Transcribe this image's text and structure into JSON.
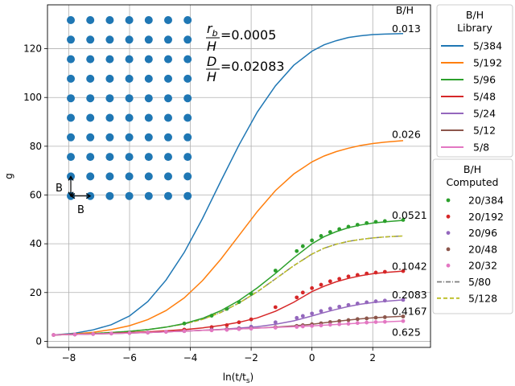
{
  "chart_data": {
    "type": "line",
    "xlabel": "ln(t/t",
    "xlabel_sub": "s",
    "xlabel_close": ")",
    "ylabel": "g",
    "xlim": [
      -8.7,
      3.9
    ],
    "ylim": [
      -2.5,
      138
    ],
    "xticks": [
      -8,
      -6,
      -4,
      -2,
      0,
      2
    ],
    "yticks": [
      0,
      20,
      40,
      60,
      80,
      100,
      120
    ],
    "grid": true,
    "x": [
      -8.5,
      -7.8,
      -7.2,
      -6.6,
      -6.0,
      -5.4,
      -4.8,
      -4.2,
      -3.6,
      -3.0,
      -2.4,
      -1.8,
      -1.2,
      -0.6,
      0.0,
      0.4,
      0.8,
      1.2,
      1.6,
      2.0,
      2.4,
      3.0
    ],
    "library": {
      "title_line1": "B/H",
      "title_line2": "Library",
      "series": [
        {
          "name": "5/384",
          "color": "#1f77b4",
          "values": [
            2.6,
            3.3,
            4.7,
            6.8,
            10.4,
            16.3,
            25.1,
            36.5,
            50.4,
            65.6,
            80.5,
            94.0,
            104.8,
            113.2,
            119.0,
            121.6,
            123.3,
            124.6,
            125.3,
            125.8,
            126.0,
            126.2
          ]
        },
        {
          "name": "5/192",
          "color": "#ff7f0e",
          "values": [
            2.6,
            3.0,
            3.7,
            4.8,
            6.4,
            8.9,
            12.6,
            17.8,
            24.9,
            33.6,
            43.4,
            53.2,
            61.8,
            68.6,
            73.6,
            76.0,
            77.8,
            79.2,
            80.3,
            81.1,
            81.7,
            82.3
          ]
        },
        {
          "name": "5/96",
          "color": "#2ca02c",
          "values": [
            2.6,
            2.8,
            3.2,
            3.6,
            4.1,
            4.8,
            5.8,
            7.3,
            9.4,
            12.5,
            16.7,
            21.9,
            27.8,
            34.2,
            40.0,
            42.9,
            45.0,
            46.6,
            47.7,
            48.5,
            49.0,
            49.6
          ]
        },
        {
          "name": "5/48",
          "color": "#d62728",
          "values": [
            2.6,
            2.8,
            3.0,
            3.3,
            3.6,
            3.9,
            4.3,
            4.8,
            5.5,
            6.5,
            7.8,
            9.6,
            12.3,
            16.0,
            20.4,
            22.6,
            24.4,
            25.8,
            26.9,
            27.7,
            28.2,
            28.8
          ]
        },
        {
          "name": "5/24",
          "color": "#9467bd",
          "values": [
            2.6,
            2.8,
            3.0,
            3.2,
            3.4,
            3.6,
            3.9,
            4.2,
            4.5,
            4.9,
            5.4,
            6.0,
            7.0,
            8.4,
            10.4,
            11.8,
            13.1,
            14.3,
            15.2,
            15.9,
            16.4,
            17.0
          ]
        },
        {
          "name": "5/12",
          "color": "#8c564b",
          "values": [
            2.6,
            2.8,
            3.0,
            3.2,
            3.4,
            3.6,
            3.9,
            4.2,
            4.5,
            4.8,
            5.1,
            5.4,
            5.8,
            6.3,
            7.0,
            7.6,
            8.2,
            8.7,
            9.2,
            9.6,
            9.9,
            10.3
          ]
        },
        {
          "name": "5/8",
          "color": "#e377c2",
          "values": [
            2.6,
            2.8,
            3.0,
            3.2,
            3.4,
            3.6,
            3.9,
            4.2,
            4.5,
            4.8,
            5.1,
            5.4,
            5.7,
            6.0,
            6.3,
            6.6,
            6.9,
            7.2,
            7.5,
            7.8,
            8.0,
            8.3
          ]
        }
      ]
    },
    "computed": {
      "title_line1": "B/H",
      "title_line2": "Computed",
      "markers": [
        {
          "name": "20/384",
          "color": "#2ca02c",
          "x": [
            -4.2,
            -3.3,
            -2.8,
            -2.4,
            -2.0,
            -1.2,
            -0.5,
            -0.3,
            0.0,
            0.3,
            0.6,
            0.9,
            1.2,
            1.5,
            1.8,
            2.1,
            2.4,
            3.0
          ],
          "y": [
            7.3,
            10.5,
            13.3,
            16.1,
            19.5,
            29.0,
            37.0,
            39.0,
            41.4,
            43.2,
            44.8,
            46.0,
            47.0,
            47.8,
            48.5,
            49.0,
            49.3,
            49.8
          ]
        },
        {
          "name": "20/192",
          "color": "#d62728",
          "x": [
            -4.2,
            -3.3,
            -2.8,
            -2.4,
            -2.0,
            -1.2,
            -0.5,
            -0.3,
            0.0,
            0.3,
            0.6,
            0.9,
            1.2,
            1.5,
            1.8,
            2.1,
            2.4,
            3.0
          ],
          "y": [
            4.8,
            5.8,
            6.6,
            7.8,
            9.0,
            14.0,
            18.0,
            20.0,
            21.8,
            23.2,
            24.6,
            25.6,
            26.6,
            27.2,
            27.8,
            28.2,
            28.5,
            28.8
          ]
        },
        {
          "name": "20/96",
          "color": "#9467bd",
          "x": [
            -4.2,
            -3.3,
            -2.8,
            -2.4,
            -2.0,
            -1.2,
            -0.5,
            -0.3,
            0.0,
            0.3,
            0.6,
            0.9,
            1.2,
            1.5,
            1.8,
            2.1,
            2.4,
            3.0
          ],
          "y": [
            4.2,
            4.8,
            5.0,
            5.4,
            6.0,
            7.8,
            9.6,
            10.4,
            11.4,
            12.4,
            13.4,
            14.2,
            14.9,
            15.5,
            16.0,
            16.4,
            16.7,
            17.0
          ]
        },
        {
          "name": "20/48",
          "color": "#8c564b",
          "x": [
            -8.5,
            -7.8,
            -7.2,
            -6.6,
            -6.0,
            -5.4,
            -4.8,
            -4.2,
            -3.3,
            -2.8,
            -2.4,
            -2.0,
            -1.2,
            -0.5,
            -0.3,
            0.0,
            0.3,
            0.6,
            0.9,
            1.2,
            1.5,
            1.8,
            2.1,
            2.4,
            3.0
          ],
          "y": [
            2.6,
            2.8,
            3.0,
            3.2,
            3.4,
            3.6,
            3.9,
            4.2,
            4.6,
            4.9,
            5.1,
            5.3,
            5.8,
            6.3,
            6.6,
            7.0,
            7.4,
            7.9,
            8.3,
            8.7,
            9.1,
            9.4,
            9.7,
            9.9,
            10.2
          ]
        },
        {
          "name": "20/32",
          "color": "#e377c2",
          "x": [
            -8.5,
            -7.8,
            -7.2,
            -6.6,
            -6.0,
            -5.4,
            -4.8,
            -4.2,
            -3.3,
            -2.8,
            -2.4,
            -2.0,
            -1.2,
            -0.5,
            -0.3,
            0.0,
            0.3,
            0.6,
            0.9,
            1.2,
            1.5,
            1.8,
            2.1,
            2.4,
            3.0
          ],
          "y": [
            2.6,
            2.8,
            3.0,
            3.2,
            3.4,
            3.6,
            3.9,
            4.2,
            4.5,
            4.7,
            5.0,
            5.2,
            5.6,
            5.9,
            6.1,
            6.3,
            6.5,
            6.8,
            7.0,
            7.2,
            7.5,
            7.7,
            7.9,
            8.0,
            8.3
          ]
        }
      ],
      "dashed": [
        {
          "name": "5/80",
          "color": "#7f7f7f",
          "dash": "dashdot",
          "values": [
            2.6,
            2.8,
            3.2,
            3.6,
            4.1,
            4.8,
            5.8,
            7.1,
            9.0,
            11.8,
            15.7,
            20.3,
            25.6,
            31.0,
            35.8,
            38.2,
            39.8,
            41.0,
            41.8,
            42.4,
            42.8,
            43.2
          ]
        },
        {
          "name": "5/128",
          "color": "#bcbd22",
          "dash": "dashed",
          "values": [
            2.6,
            2.8,
            3.2,
            3.6,
            4.1,
            4.8,
            5.8,
            7.1,
            9.0,
            11.8,
            15.7,
            20.3,
            25.6,
            31.0,
            35.8,
            38.2,
            39.8,
            41.0,
            41.8,
            42.4,
            42.8,
            43.2
          ]
        }
      ]
    },
    "curve_labels": {
      "header": "B/H",
      "items": [
        {
          "text": "0.013",
          "x": 3.0,
          "y": 128.5
        },
        {
          "text": "0.026",
          "x": 3.0,
          "y": 85.0
        },
        {
          "text": "0.0521",
          "x": 3.0,
          "y": 52.0
        },
        {
          "text": "0.1042",
          "x": 3.0,
          "y": 31.0
        },
        {
          "text": "0.2083",
          "x": 3.0,
          "y": 19.2
        },
        {
          "text": "0.4167",
          "x": 3.0,
          "y": 12.5
        },
        {
          "text": "0.625",
          "x": 3.0,
          "y": 4.0
        }
      ]
    },
    "annotations": {
      "rb_label": "r",
      "rb_sub": "b",
      "rb_value": "=0.0005",
      "d_label": "D",
      "d_value": "=0.02083",
      "h_label": "H",
      "inset_b1": "B",
      "inset_b2": "B",
      "well_grid": {
        "cols": 7,
        "rows": 10,
        "color": "#1f77b4"
      }
    }
  }
}
